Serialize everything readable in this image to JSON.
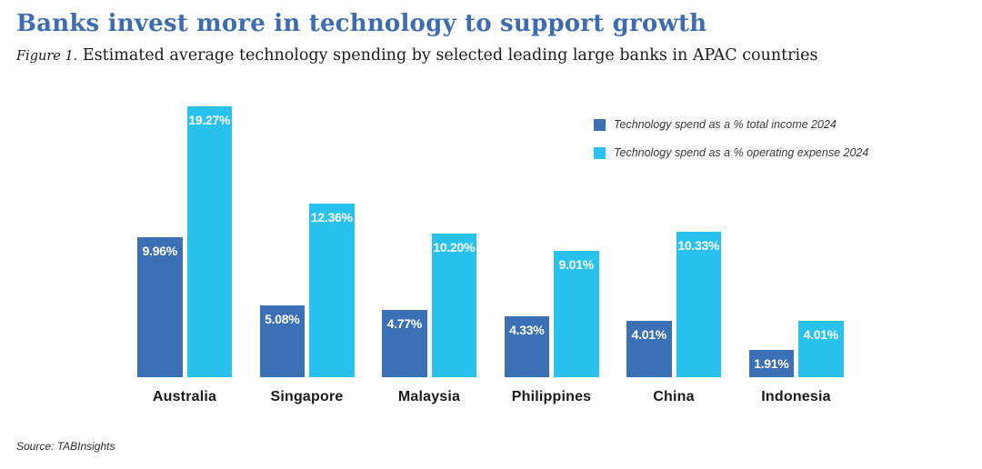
{
  "header": {
    "title": "Banks invest more in technology to support growth",
    "figure_label": "Figure 1.",
    "subtitle": "Estimated average technology spending by selected leading large banks in APAC countries"
  },
  "legend": [
    {
      "label": "Technology spend as a % total income 2024",
      "color": "#3b70b7"
    },
    {
      "label": "Technology spend as a % operating expense 2024",
      "color": "#29c2ef"
    }
  ],
  "source": "Source: TABInsights",
  "colors": {
    "title_blue": "#3e6cb3",
    "series1_blue": "#3b70b7",
    "series2_cyan": "#29c2ef",
    "value_label": "#ffffff",
    "category_label": "#1a1a1a"
  },
  "chart_data": {
    "type": "bar",
    "title": "Estimated average technology spending by selected leading large banks in APAC countries",
    "categories": [
      "Australia",
      "Singapore",
      "Malaysia",
      "Philippines",
      "China",
      "Indonesia"
    ],
    "series": [
      {
        "name": "Technology spend as a % total income 2024",
        "color": "#3b70b7",
        "values": [
          9.96,
          5.08,
          4.77,
          4.33,
          4.01,
          1.91
        ],
        "labels": [
          "9.96%",
          "5.08%",
          "4.77%",
          "4.33%",
          "4.01%",
          "1.91%"
        ]
      },
      {
        "name": "Technology spend as a % operating expense 2024",
        "color": "#29c2ef",
        "values": [
          19.27,
          12.36,
          10.2,
          9.01,
          10.33,
          4.01
        ],
        "labels": [
          "19.27%",
          "12.36%",
          "10.20%",
          "9.01%",
          "10.33%",
          "4.01%"
        ]
      }
    ],
    "xlabel": "",
    "ylabel": "",
    "ylim": [
      0,
      19.27
    ],
    "value_suffix": "%",
    "grid": false,
    "axes_visible": false,
    "legend_position": "top-right",
    "bar_value_labels": "inside-top"
  }
}
